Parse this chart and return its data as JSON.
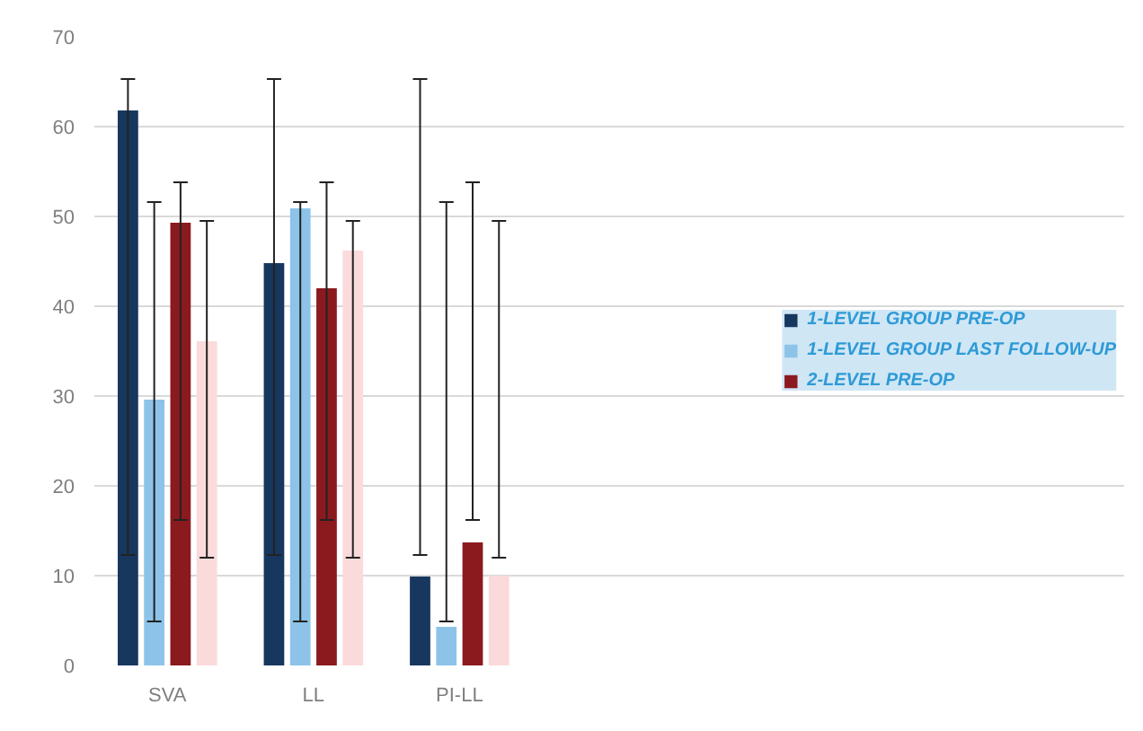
{
  "chart_data": {
    "type": "bar",
    "categories": [
      "SVA",
      "LL",
      "PI-LL"
    ],
    "series": [
      {
        "name": "1-LEVEL GROUP PRE-OP",
        "color": "#17375e",
        "values": [
          61.8,
          44.8,
          9.9
        ],
        "errors": [
          [
            12.3,
            65.3
          ],
          [
            12.3,
            65.3
          ],
          [
            12.3,
            65.3
          ]
        ]
      },
      {
        "name": "1-LEVEL GROUP LAST FOLLOW-UP",
        "color": "#8dc3e8",
        "values": [
          29.6,
          50.9,
          4.3
        ],
        "errors": [
          [
            4.9,
            51.6
          ],
          [
            4.9,
            51.6
          ],
          [
            4.9,
            51.6
          ]
        ]
      },
      {
        "name": "2-LEVEL PRE-OP",
        "color": "#8b1a1f",
        "values": [
          49.3,
          42.0,
          13.7
        ],
        "errors": [
          [
            16.2,
            53.8
          ],
          [
            16.2,
            53.8
          ],
          [
            16.2,
            53.8
          ]
        ]
      },
      {
        "color": "#fadadb",
        "values": [
          36.1,
          46.2,
          10.0
        ],
        "errors": [
          [
            12.0,
            49.5
          ],
          [
            12.0,
            49.5
          ],
          [
            12.0,
            49.5
          ]
        ]
      }
    ],
    "ylim": [
      0,
      70
    ],
    "yticks": [
      0,
      10,
      20,
      30,
      40,
      50,
      60,
      70
    ],
    "grid": "y",
    "legend": "right"
  }
}
